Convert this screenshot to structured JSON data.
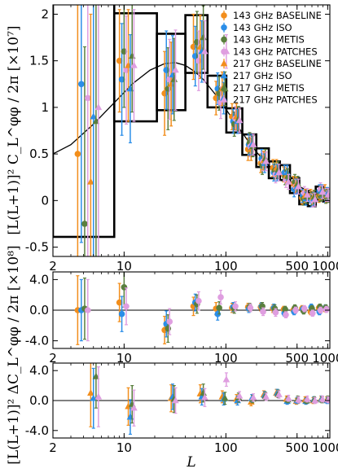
{
  "chart_data": [
    {
      "type": "scatter",
      "panel": "main",
      "ylabel": "[L(L+1)]² C_L^φφ / 2π [×10⁷]",
      "xlabel": "",
      "xscale": "log",
      "xlim": [
        2,
        1050
      ],
      "ylim": [
        -0.6,
        2.1
      ],
      "xticks": [
        "2",
        "10",
        "100",
        "500",
        "1000"
      ],
      "yticks": [
        "-0.5",
        "0",
        "0.5",
        "1",
        "1.5",
        "2"
      ],
      "legend": {
        "placement": "top-right"
      },
      "theory_curve": {
        "x": [
          2,
          3,
          5,
          8,
          12,
          18,
          25,
          32,
          40,
          50,
          60,
          80,
          100,
          130,
          160,
          200,
          250,
          300,
          400,
          500,
          600,
          700,
          800,
          900,
          1000
        ],
        "y": [
          0.5,
          0.6,
          0.82,
          1.05,
          1.25,
          1.4,
          1.47,
          1.48,
          1.45,
          1.38,
          1.3,
          1.13,
          0.98,
          0.8,
          0.66,
          0.52,
          0.4,
          0.32,
          0.22,
          0.16,
          0.12,
          0.095,
          0.08,
          0.07,
          0.06
        ]
      },
      "bandpowers": [
        {
          "lmin": 2,
          "lmax": 7,
          "value": 1.43,
          "error": 1.82
        },
        {
          "lmin": 8,
          "lmax": 20,
          "value": 1.43,
          "error": 0.58
        },
        {
          "lmin": 21,
          "lmax": 39,
          "value": 1.38,
          "error": 0.41
        },
        {
          "lmin": 40,
          "lmax": 65,
          "value": 1.68,
          "error": 0.31
        },
        {
          "lmin": 66,
          "lmax": 100,
          "value": 1.17,
          "error": 0.17
        },
        {
          "lmin": 101,
          "lmax": 144,
          "value": 0.86,
          "error": 0.13
        },
        {
          "lmin": 145,
          "lmax": 198,
          "value": 0.6,
          "error": 0.11
        },
        {
          "lmin": 199,
          "lmax": 263,
          "value": 0.46,
          "error": 0.1
        },
        {
          "lmin": 264,
          "lmax": 338,
          "value": 0.33,
          "error": 0.09
        },
        {
          "lmin": 339,
          "lmax": 425,
          "value": 0.3,
          "error": 0.08
        },
        {
          "lmin": 426,
          "lmax": 525,
          "value": 0.16,
          "error": 0.08
        },
        {
          "lmin": 526,
          "lmax": 637,
          "value": 0.03,
          "error": 0.07
        },
        {
          "lmin": 638,
          "lmax": 762,
          "value": 0.01,
          "error": 0.07
        },
        {
          "lmin": 763,
          "lmax": 901,
          "value": 0.08,
          "error": 0.07
        },
        {
          "lmin": 902,
          "lmax": 1000,
          "value": 0.06,
          "error": 0.07
        }
      ],
      "series": [
        {
          "name": "143 GHz BASELINE",
          "color": "#f28e1c",
          "marker": "circle",
          "x": [
            3.5,
            9,
            25,
            48,
            80,
            115,
            165,
            220,
            290,
            370,
            460,
            560,
            680,
            820,
            940
          ],
          "y": [
            0.5,
            1.5,
            1.15,
            1.65,
            1.1,
            0.9,
            0.55,
            0.4,
            0.35,
            0.28,
            0.18,
            0.03,
            0.05,
            0.05,
            0.1
          ],
          "err": [
            1.6,
            0.55,
            0.45,
            0.35,
            0.18,
            0.14,
            0.12,
            0.1,
            0.09,
            0.08,
            0.08,
            0.07,
            0.07,
            0.07,
            0.07
          ]
        },
        {
          "name": "143 GHz ISO",
          "color": "#2b8ee8",
          "marker": "circle",
          "x": [
            3.8,
            9.5,
            26,
            50,
            83,
            118,
            168,
            224,
            296,
            376,
            468,
            570,
            690,
            830,
            950
          ],
          "y": [
            1.25,
            1.3,
            1.4,
            1.55,
            1.2,
            0.85,
            0.6,
            0.45,
            0.3,
            0.3,
            0.12,
            0.05,
            0.0,
            0.1,
            0.05
          ],
          "err": [
            1.7,
            0.6,
            0.42,
            0.32,
            0.17,
            0.13,
            0.11,
            0.1,
            0.09,
            0.08,
            0.08,
            0.07,
            0.07,
            0.07,
            0.07
          ]
        },
        {
          "name": "143 GHz METIS",
          "color": "#5a7f3e",
          "marker": "circle",
          "x": [
            4.1,
            10,
            27,
            52,
            86,
            121,
            171,
            228,
            302,
            382,
            476,
            580,
            700,
            840,
            960
          ],
          "y": [
            -0.25,
            1.6,
            1.2,
            1.7,
            1.15,
            0.82,
            0.62,
            0.38,
            0.32,
            0.25,
            0.2,
            0.02,
            0.02,
            0.06,
            0.04
          ],
          "err": [
            1.9,
            0.6,
            0.44,
            0.33,
            0.18,
            0.13,
            0.11,
            0.1,
            0.09,
            0.08,
            0.08,
            0.07,
            0.07,
            0.07,
            0.07
          ]
        },
        {
          "name": "143 GHz PATCHES",
          "color": "#df9ee0",
          "marker": "circle",
          "x": [
            4.4,
            10.5,
            28,
            54,
            89,
            124,
            174,
            232,
            308,
            388,
            484,
            590,
            710,
            850,
            970
          ],
          "y": [
            1.1,
            1.4,
            1.3,
            1.5,
            1.05,
            0.88,
            0.58,
            0.42,
            0.28,
            0.22,
            0.15,
            0.08,
            0.0,
            0.12,
            0.06
          ],
          "err": [
            1.7,
            0.58,
            0.43,
            0.32,
            0.17,
            0.13,
            0.11,
            0.1,
            0.09,
            0.08,
            0.08,
            0.07,
            0.07,
            0.07,
            0.07
          ]
        },
        {
          "name": "217 GHz BASELINE",
          "color": "#f28e1c",
          "marker": "triangle",
          "x": [
            4.7,
            11,
            29,
            56,
            92,
            127,
            177,
            236,
            314,
            394,
            492,
            600,
            720,
            860,
            980
          ],
          "y": [
            0.2,
            1.45,
            1.25,
            1.65,
            1.2,
            0.9,
            0.55,
            0.43,
            0.35,
            0.27,
            0.17,
            0.05,
            0.03,
            0.08,
            0.05
          ],
          "err": [
            1.8,
            0.6,
            0.45,
            0.34,
            0.18,
            0.14,
            0.12,
            0.1,
            0.09,
            0.08,
            0.08,
            0.07,
            0.07,
            0.07,
            0.07
          ]
        },
        {
          "name": "217 GHz ISO",
          "color": "#2b8ee8",
          "marker": "triangle",
          "x": [
            5.0,
            11.5,
            30,
            58,
            95,
            130,
            180,
            240,
            320,
            400,
            500,
            610,
            730,
            870,
            990
          ],
          "y": [
            0.9,
            1.2,
            1.35,
            1.6,
            1.1,
            0.85,
            0.6,
            0.4,
            0.3,
            0.3,
            0.15,
            0.02,
            0.02,
            0.1,
            0.07
          ],
          "err": [
            1.7,
            0.58,
            0.42,
            0.33,
            0.17,
            0.13,
            0.11,
            0.1,
            0.09,
            0.08,
            0.08,
            0.07,
            0.07,
            0.07,
            0.07
          ]
        },
        {
          "name": "217 GHz METIS",
          "color": "#5a7f3e",
          "marker": "triangle",
          "x": [
            5.3,
            12,
            31,
            60,
            98,
            133,
            183,
            244,
            326,
            406,
            508,
            620,
            740,
            880,
            1000
          ],
          "y": [
            0.85,
            1.55,
            1.3,
            1.75,
            1.2,
            0.88,
            0.58,
            0.45,
            0.33,
            0.26,
            0.18,
            0.04,
            0.04,
            0.07,
            0.05
          ],
          "err": [
            1.9,
            0.6,
            0.44,
            0.34,
            0.18,
            0.13,
            0.11,
            0.1,
            0.09,
            0.08,
            0.08,
            0.07,
            0.07,
            0.07,
            0.07
          ]
        },
        {
          "name": "217 GHz PATCHES",
          "color": "#df9ee0",
          "marker": "triangle",
          "x": [
            5.6,
            12.5,
            32,
            62,
            101,
            136,
            186,
            248,
            332,
            412,
            516,
            630,
            750,
            890,
            1010
          ],
          "y": [
            1.0,
            1.45,
            1.4,
            1.6,
            1.6,
            0.86,
            0.6,
            0.42,
            0.3,
            0.2,
            0.15,
            0.06,
            0.01,
            0.09,
            0.06
          ],
          "err": [
            1.8,
            0.6,
            0.43,
            0.33,
            0.18,
            0.13,
            0.11,
            0.1,
            0.09,
            0.08,
            0.08,
            0.07,
            0.07,
            0.07,
            0.07
          ]
        }
      ]
    },
    {
      "type": "scatter",
      "panel": "difference-143",
      "ylabel": "[L(L+1)]² ΔC_L^φφ / 2π [×10⁸]",
      "xscale": "log",
      "xlim": [
        2,
        1050
      ],
      "ylim": [
        -5,
        5
      ],
      "xticks": [
        "2",
        "10",
        "100",
        "500",
        "1000"
      ],
      "yticks": [
        "4.0",
        "0.0",
        "-4.0"
      ],
      "reference_line": 0,
      "series": [
        {
          "name": "143 GHz BASELINE",
          "color": "#f28e1c",
          "marker": "circle",
          "x": [
            3.5,
            9,
            25,
            48,
            80,
            115,
            165,
            220,
            290,
            370,
            460,
            560,
            680,
            820,
            940
          ],
          "y": [
            0.0,
            1.0,
            -2.6,
            0.5,
            0.2,
            0.3,
            0.4,
            0.4,
            0.2,
            0.1,
            0.0,
            0.2,
            -0.2,
            0.3,
            0.2
          ],
          "err": [
            4.5,
            2.5,
            1.8,
            1.2,
            0.8,
            0.6,
            0.5,
            0.5,
            0.5,
            0.4,
            0.4,
            0.4,
            0.4,
            0.4,
            0.4
          ]
        },
        {
          "name": "143 GHz ISO",
          "color": "#2b8ee8",
          "marker": "circle",
          "x": [
            3.8,
            9.5,
            26,
            50,
            83,
            118,
            168,
            224,
            296,
            376,
            468,
            570,
            690,
            830,
            950
          ],
          "y": [
            0.0,
            -0.5,
            -1.8,
            1.0,
            -0.5,
            0.4,
            0.2,
            0.5,
            0.3,
            -0.4,
            -0.2,
            0.1,
            0.4,
            -0.2,
            0.3
          ],
          "err": [
            4.0,
            2.3,
            1.7,
            1.1,
            0.8,
            0.6,
            0.5,
            0.5,
            0.5,
            0.4,
            0.4,
            0.4,
            0.4,
            0.4,
            0.4
          ]
        },
        {
          "name": "143 GHz METIS",
          "color": "#5a7f3e",
          "marker": "circle",
          "x": [
            4.1,
            10,
            27,
            52,
            86,
            121,
            171,
            228,
            302,
            382,
            476,
            580,
            700,
            840,
            960
          ],
          "y": [
            0.2,
            3.0,
            -2.4,
            0.8,
            0.3,
            0.2,
            0.4,
            0.5,
            0.2,
            0.1,
            0.3,
            -0.1,
            0.2,
            0.4,
            0.3
          ],
          "err": [
            4.0,
            2.6,
            1.8,
            1.2,
            0.8,
            0.6,
            0.5,
            0.5,
            0.5,
            0.4,
            0.4,
            0.4,
            0.4,
            0.4,
            0.4
          ]
        },
        {
          "name": "143 GHz PATCHES",
          "color": "#df9ee0",
          "marker": "circle",
          "x": [
            4.4,
            10.5,
            28,
            54,
            89,
            124,
            174,
            232,
            308,
            388,
            484,
            590,
            710,
            850,
            970
          ],
          "y": [
            0.0,
            0.5,
            -1.5,
            1.2,
            1.7,
            0.5,
            0.3,
            -0.2,
            -0.3,
            -0.6,
            0.0,
            0.2,
            -0.4,
            0.0,
            0.1
          ],
          "err": [
            4.0,
            2.4,
            1.7,
            1.2,
            0.9,
            0.6,
            0.5,
            0.5,
            0.5,
            0.4,
            0.4,
            0.4,
            0.4,
            0.4,
            0.4
          ]
        }
      ]
    },
    {
      "type": "scatter",
      "panel": "difference-217",
      "ylabel": "",
      "xlabel": "L",
      "xscale": "log",
      "xlim": [
        2,
        1050
      ],
      "ylim": [
        -5,
        5
      ],
      "xticks": [
        "2",
        "10",
        "100",
        "500",
        "1000"
      ],
      "yticks": [
        "4.0",
        "0.0",
        "-4.0"
      ],
      "reference_line": 0,
      "series": [
        {
          "name": "217 GHz BASELINE",
          "color": "#f28e1c",
          "marker": "triangle",
          "x": [
            4.7,
            11,
            29,
            56,
            92,
            127,
            177,
            236,
            314,
            394,
            492,
            600,
            720,
            860,
            980
          ],
          "y": [
            1.0,
            -0.8,
            0.3,
            0.9,
            0.5,
            0.2,
            -0.2,
            0.8,
            1.0,
            0.2,
            -0.1,
            0.1,
            0.0,
            0.2,
            0.1
          ],
          "err": [
            4.5,
            2.5,
            1.8,
            1.2,
            0.8,
            0.6,
            0.5,
            0.5,
            0.5,
            0.4,
            0.4,
            0.4,
            0.4,
            0.4,
            0.4
          ]
        },
        {
          "name": "217 GHz ISO",
          "color": "#2b8ee8",
          "marker": "triangle",
          "x": [
            5.0,
            11.5,
            30,
            58,
            95,
            130,
            180,
            240,
            320,
            400,
            500,
            610,
            730,
            870,
            990
          ],
          "y": [
            0.3,
            -2.2,
            0.5,
            0.5,
            0.2,
            0.0,
            0.3,
            0.7,
            1.0,
            -0.1,
            0.0,
            -0.1,
            0.1,
            0.2,
            0.0
          ],
          "err": [
            4.0,
            2.3,
            1.7,
            1.1,
            0.8,
            0.6,
            0.5,
            0.5,
            0.5,
            0.4,
            0.4,
            0.4,
            0.4,
            0.4,
            0.4
          ]
        },
        {
          "name": "217 GHz METIS",
          "color": "#5a7f3e",
          "marker": "triangle",
          "x": [
            5.3,
            12,
            31,
            60,
            98,
            133,
            183,
            244,
            326,
            406,
            508,
            620,
            740,
            880,
            1000
          ],
          "y": [
            3.2,
            -0.5,
            0.2,
            1.0,
            0.3,
            0.4,
            0.2,
            0.6,
            0.9,
            0.1,
            0.2,
            0.0,
            0.1,
            0.1,
            0.2
          ],
          "err": [
            4.2,
            2.5,
            1.8,
            1.2,
            0.8,
            0.6,
            0.5,
            0.5,
            0.5,
            0.4,
            0.4,
            0.4,
            0.4,
            0.4,
            0.4
          ]
        },
        {
          "name": "217 GHz PATCHES",
          "color": "#df9ee0",
          "marker": "triangle",
          "x": [
            5.6,
            12.5,
            32,
            62,
            101,
            136,
            186,
            248,
            332,
            412,
            516,
            630,
            750,
            890,
            1010
          ],
          "y": [
            0.5,
            -1.0,
            0.0,
            0.4,
            2.8,
            0.6,
            0.4,
            0.5,
            0.8,
            0.3,
            0.1,
            0.2,
            0.0,
            0.2,
            0.1
          ],
          "err": [
            4.0,
            2.4,
            1.7,
            1.2,
            0.9,
            0.6,
            0.5,
            0.5,
            0.5,
            0.4,
            0.4,
            0.4,
            0.4,
            0.4,
            0.4
          ]
        }
      ]
    }
  ]
}
